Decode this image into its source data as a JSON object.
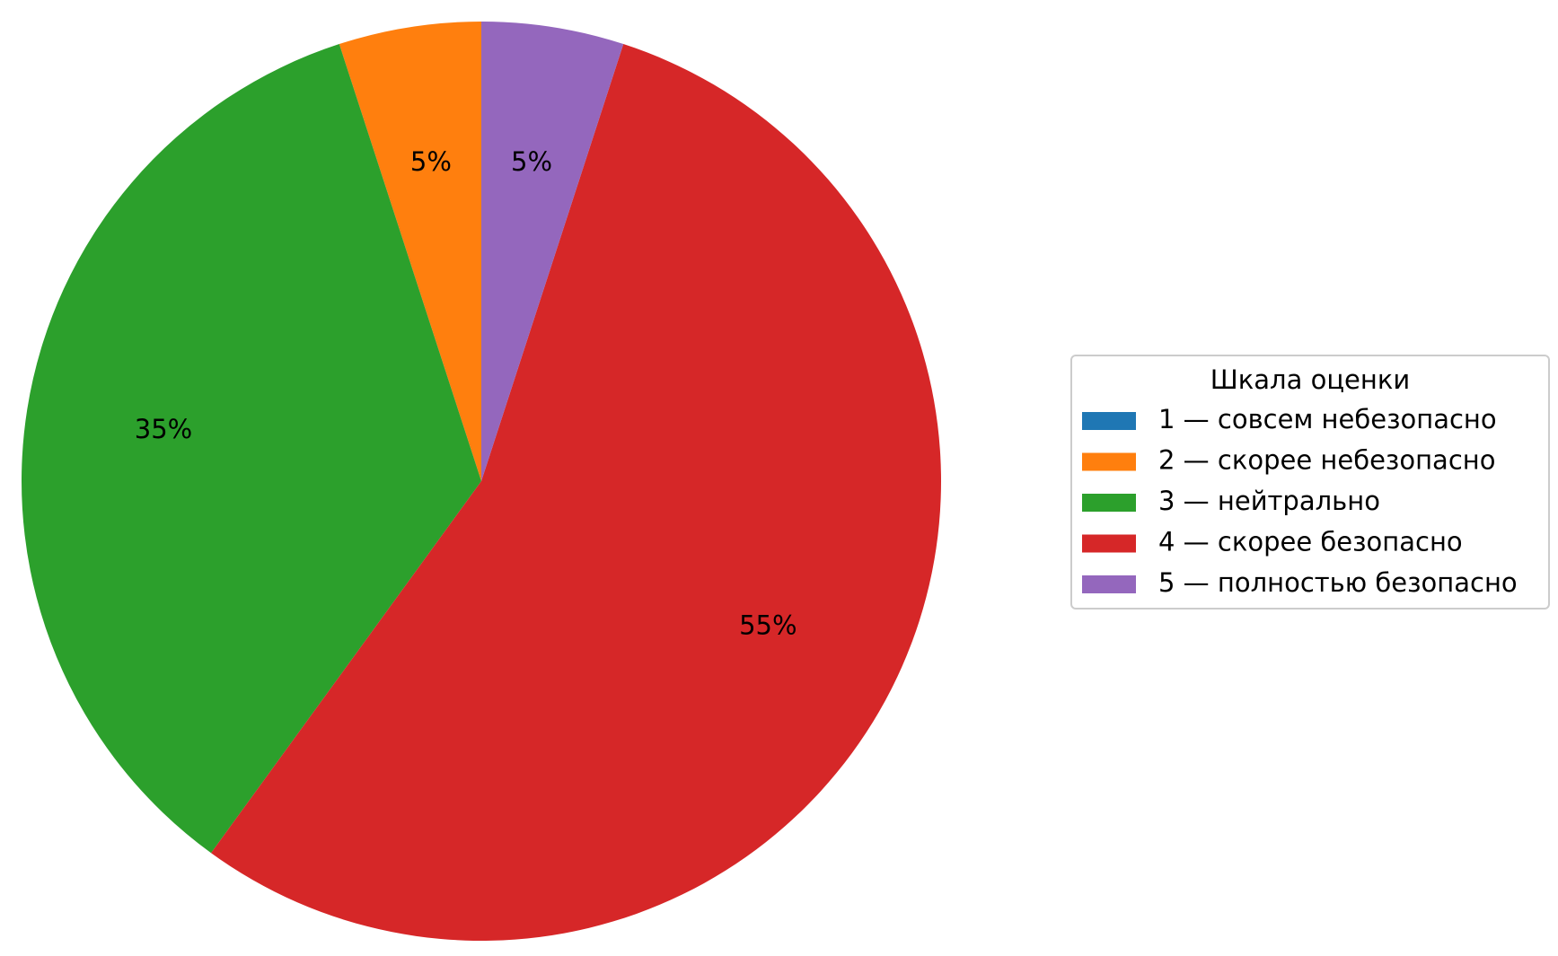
{
  "chart_data": {
    "type": "pie",
    "categories": [
      "1 — совсем небезопасно",
      "2 — скорее небезопасно",
      "3 — нейтрально",
      "4 — скорее безопасно",
      "5 — полностью безопасно"
    ],
    "values": [
      0,
      5,
      35,
      55,
      5
    ],
    "value_labels": [
      null,
      "5%",
      "35%",
      "55%",
      "5%"
    ],
    "colors": [
      "#1f77b4",
      "#ff7f0e",
      "#2ca02c",
      "#d62728",
      "#9467bd"
    ],
    "legend_title": "Шкала оценки",
    "legend": "right"
  }
}
